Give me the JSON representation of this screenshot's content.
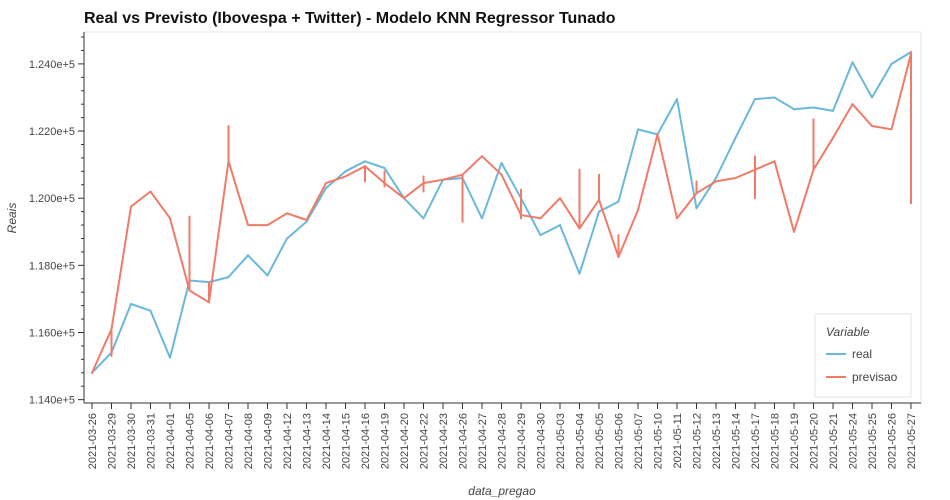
{
  "chart_data": {
    "type": "line",
    "title": "Real vs Previsto (Ibovespa + Twitter) - Modelo KNN Regressor Tunado",
    "xlabel": "data_pregao",
    "ylabel": "Reais",
    "ylim": [
      113900,
      124950
    ],
    "y_ticks": [
      {
        "value": 114000,
        "label": "1.140e+5"
      },
      {
        "value": 116000,
        "label": "1.160e+5"
      },
      {
        "value": 118000,
        "label": "1.180e+5"
      },
      {
        "value": 120000,
        "label": "1.200e+5"
      },
      {
        "value": 122000,
        "label": "1.220e+5"
      },
      {
        "value": 124000,
        "label": "1.240e+5"
      }
    ],
    "categories": [
      "2021-03-26",
      "2021-03-29",
      "2021-03-30",
      "2021-03-31",
      "2021-04-01",
      "2021-04-05",
      "2021-04-06",
      "2021-04-07",
      "2021-04-08",
      "2021-04-09",
      "2021-04-12",
      "2021-04-13",
      "2021-04-14",
      "2021-04-15",
      "2021-04-16",
      "2021-04-19",
      "2021-04-20",
      "2021-04-22",
      "2021-04-23",
      "2021-04-26",
      "2021-04-27",
      "2021-04-28",
      "2021-04-29",
      "2021-04-30",
      "2021-05-03",
      "2021-05-04",
      "2021-05-05",
      "2021-05-06",
      "2021-05-07",
      "2021-05-10",
      "2021-05-11",
      "2021-05-12",
      "2021-05-13",
      "2021-05-14",
      "2021-05-17",
      "2021-05-18",
      "2021-05-19",
      "2021-05-20",
      "2021-05-21",
      "2021-05-24",
      "2021-05-25",
      "2021-05-26",
      "2021-05-27"
    ],
    "legend": {
      "title": "Variable",
      "position": "bottom-right"
    },
    "grid": false,
    "series": [
      {
        "name": "real",
        "color": "#6bb8dd",
        "values": [
          114800,
          115400,
          116850,
          116650,
          115250,
          117550,
          117500,
          117650,
          118300,
          117700,
          118800,
          119300,
          120300,
          120800,
          121100,
          120900,
          120000,
          119400,
          120550,
          120600,
          119400,
          121050,
          120000,
          118900,
          119200,
          117750,
          119600,
          119900,
          122050,
          121900,
          122950,
          119700,
          120600,
          121800,
          122950,
          123000,
          122650,
          122700,
          122600,
          124050,
          123000,
          124000,
          124350
        ]
      },
      {
        "name": "previsao",
        "color": "#f07b68",
        "values": [
          114800,
          116100,
          119750,
          120200,
          119400,
          117250,
          116900,
          121100,
          119200,
          119200,
          119550,
          119350,
          120450,
          120650,
          120950,
          120450,
          120000,
          120450,
          120550,
          120700,
          121250,
          120700,
          119500,
          119400,
          120000,
          119100,
          119950,
          118250,
          119650,
          121900,
          119400,
          120150,
          120500,
          120600,
          120850,
          121100,
          119000,
          120850,
          121800,
          122800,
          122150,
          122050,
          124300
        ],
        "spikes": [
          {
            "x": "2021-03-29",
            "values": [
              115300,
              116100
            ]
          },
          {
            "x": "2021-04-05",
            "values": [
              117250,
              119450
            ]
          },
          {
            "x": "2021-04-06",
            "values": [
              116900,
              117500
            ]
          },
          {
            "x": "2021-04-07",
            "values": [
              121100,
              122150
            ]
          },
          {
            "x": "2021-04-16",
            "values": [
              120500,
              120950
            ]
          },
          {
            "x": "2021-04-19",
            "values": [
              120350,
              120800
            ]
          },
          {
            "x": "2021-04-22",
            "values": [
              120200,
              120650
            ]
          },
          {
            "x": "2021-04-26",
            "values": [
              119300,
              120700
            ]
          },
          {
            "x": "2021-04-29",
            "values": [
              119400,
              120250
            ]
          },
          {
            "x": "2021-05-04",
            "values": [
              119100,
              120850
            ]
          },
          {
            "x": "2021-05-05",
            "values": [
              119950,
              120700
            ]
          },
          {
            "x": "2021-05-06",
            "values": [
              118250,
              118900
            ]
          },
          {
            "x": "2021-05-12",
            "values": [
              120150,
              120500
            ]
          },
          {
            "x": "2021-05-17",
            "values": [
              120000,
              121250
            ]
          },
          {
            "x": "2021-05-20",
            "values": [
              120850,
              122350
            ]
          },
          {
            "x": "2021-05-27",
            "values": [
              119850,
              124350
            ]
          }
        ]
      }
    ]
  }
}
